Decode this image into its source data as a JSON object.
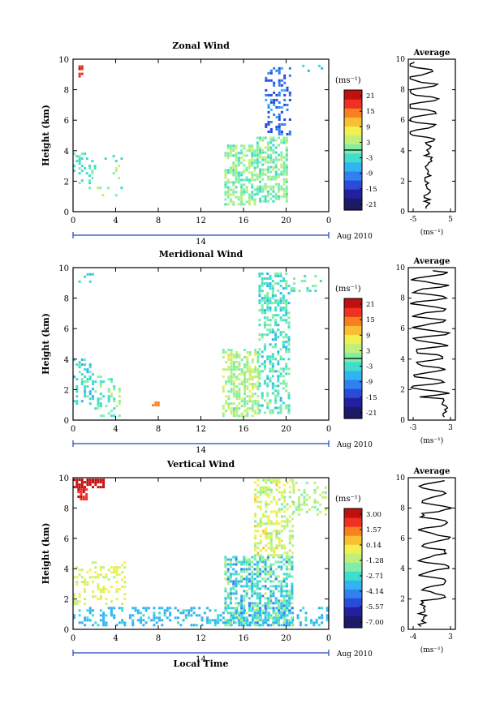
{
  "figure": {
    "xlabel": "Local Time",
    "date_label": "Aug 2010",
    "day_label": "14",
    "average_title": "Average",
    "unit_label": "(ms⁻¹)"
  },
  "colors": {
    "colormap": [
      "#1a1a66",
      "#2020a0",
      "#2a4ad8",
      "#2f80f0",
      "#32b4f0",
      "#40dccc",
      "#80eeaa",
      "#c0f07a",
      "#f0f050",
      "#f8c030",
      "#f88020",
      "#f03020",
      "#c01010"
    ]
  },
  "chart_data": [
    {
      "type": "heatmap",
      "title": "Zonal Wind",
      "ylabel": "Height (km)",
      "ylim": [
        0,
        10
      ],
      "yticks": [
        "0",
        "2",
        "4",
        "6",
        "8",
        "10"
      ],
      "xticks": [
        "0",
        "4",
        "8",
        "12",
        "16",
        "20",
        "0"
      ],
      "colorbar": {
        "ticks": [
          "21",
          "15",
          "9",
          "3",
          "-3",
          "-9",
          "-15",
          "-21"
        ],
        "range": [
          -24,
          24
        ],
        "contour": 0
      },
      "average_profile": {
        "xlim": [
          -5,
          5
        ],
        "xticks": [
          "-5",
          "5"
        ],
        "ylim": [
          0,
          10
        ],
        "yticks": [
          "0",
          "2",
          "4",
          "6",
          "8",
          "10"
        ]
      },
      "field": "zonal"
    },
    {
      "type": "heatmap",
      "title": "Meridional Wind",
      "ylabel": "Height (km)",
      "ylim": [
        0,
        10
      ],
      "yticks": [
        "0",
        "2",
        "4",
        "6",
        "8",
        "10"
      ],
      "xticks": [
        "0",
        "4",
        "8",
        "12",
        "16",
        "20",
        "0"
      ],
      "colorbar": {
        "ticks": [
          "21",
          "15",
          "9",
          "3",
          "-3",
          "-9",
          "-15",
          "-21"
        ],
        "range": [
          -24,
          24
        ],
        "contour": 0
      },
      "average_profile": {
        "xlim": [
          -3,
          3
        ],
        "xticks": [
          "-3",
          "3"
        ],
        "ylim": [
          0,
          10
        ],
        "yticks": [
          "0",
          "2",
          "4",
          "6",
          "8",
          "10"
        ]
      },
      "field": "meridional"
    },
    {
      "type": "heatmap",
      "title": "Vertical Wind",
      "ylabel": "Height (km)",
      "ylim": [
        0,
        10
      ],
      "yticks": [
        "0",
        "2",
        "4",
        "6",
        "8",
        "10"
      ],
      "xticks": [
        "0",
        "4",
        "8",
        "12",
        "16",
        "20",
        "0"
      ],
      "colorbar": {
        "ticks": [
          "3.00",
          "1.57",
          "0.14",
          "-1.28",
          "-2.71",
          "-4.14",
          "-5.57",
          "-7.00"
        ],
        "range": [
          -8,
          4
        ],
        "contour": null
      },
      "average_profile": {
        "xlim": [
          -4,
          3
        ],
        "xticks": [
          "-4",
          "3"
        ],
        "ylim": [
          0,
          10
        ],
        "yticks": [
          "0",
          "2",
          "4",
          "6",
          "8",
          "10"
        ]
      },
      "field": "vertical"
    }
  ]
}
